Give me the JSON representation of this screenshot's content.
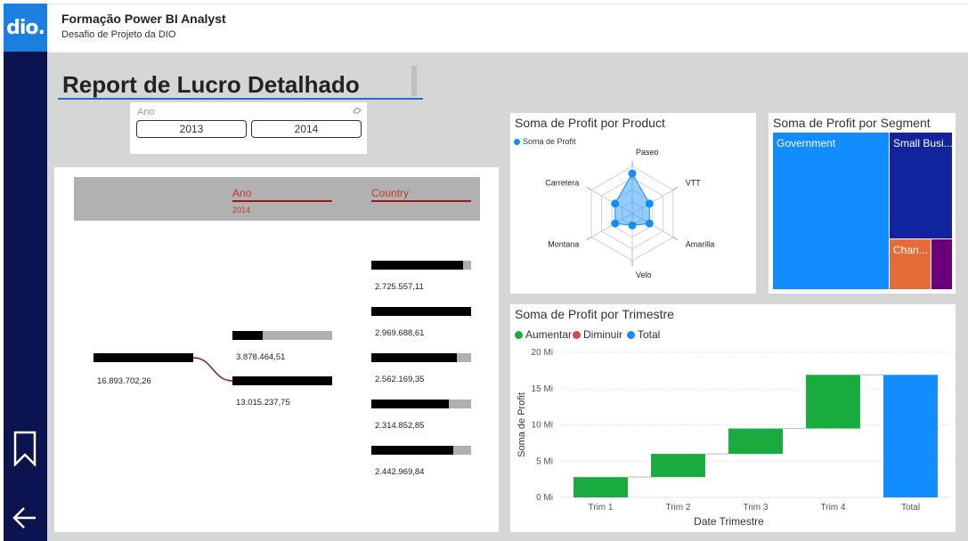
{
  "app": {
    "logo_text": "dio.",
    "title": "Formação Power BI Analyst",
    "subtitle": "Desafio de Projeto da DIO"
  },
  "sidebar": {
    "icons": [
      "bookmark-icon",
      "back-arrow-icon"
    ]
  },
  "report": {
    "title": "Report de Lucro Detalhado"
  },
  "slicer": {
    "label": "Ano",
    "options": [
      "2013",
      "2014"
    ]
  },
  "decomposition_tree": {
    "columns": [
      "Ano",
      "Country"
    ],
    "ano_selected": "2014",
    "root_value": "16.893.702,26",
    "ano_nodes": [
      {
        "value": "3.878.464,51",
        "fill": 0.3
      },
      {
        "value": "13.015.237,75",
        "fill": 1.0
      }
    ],
    "country_nodes": [
      {
        "value": "2.725.557,11",
        "fill": 0.92
      },
      {
        "value": "2.969.688,61",
        "fill": 1.0
      },
      {
        "value": "2.562.169,35",
        "fill": 0.86
      },
      {
        "value": "2.314.852,85",
        "fill": 0.78
      },
      {
        "value": "2.442.969,84",
        "fill": 0.82
      }
    ]
  },
  "radar": {
    "title": "Soma de Profit por Product",
    "legend": "Soma de Profit",
    "axes": [
      "Paseo",
      "VTT",
      "Amarilla",
      "Velo",
      "Montana",
      "Carretera"
    ],
    "values": [
      0.85,
      0.42,
      0.42,
      0.25,
      0.42,
      0.42
    ],
    "color": "#118DFF"
  },
  "treemap": {
    "title": "Soma de Profit por Segment",
    "items": [
      {
        "label": "Government",
        "color": "#118DFF"
      },
      {
        "label": "Small Busi...",
        "color": "#12239E"
      },
      {
        "label": "Chan...",
        "color": "#E66C37"
      },
      {
        "label": "",
        "color": "#6B007B"
      }
    ]
  },
  "chart_data": {
    "type": "waterfall",
    "title": "Soma de Profit por Trimestre",
    "legend": [
      {
        "name": "Aumentar",
        "color": "#1AAB40"
      },
      {
        "name": "Diminuir",
        "color": "#D64550"
      },
      {
        "name": "Total",
        "color": "#118DFF"
      }
    ],
    "categories": [
      "Trim 1",
      "Trim 2",
      "Trim 3",
      "Trim 4",
      "Total"
    ],
    "start": [
      0,
      2.8,
      6.0,
      9.5,
      0
    ],
    "end": [
      2.8,
      6.0,
      9.5,
      16.9,
      16.9
    ],
    "kinds": [
      "Aumentar",
      "Aumentar",
      "Aumentar",
      "Aumentar",
      "Total"
    ],
    "ylabel": "Soma de Profit",
    "xlabel": "Date Trimestre",
    "yticks": [
      "0 Mi",
      "5 Mi",
      "10 Mi",
      "15 Mi",
      "20 Mi"
    ],
    "ylim": [
      0,
      20
    ]
  }
}
